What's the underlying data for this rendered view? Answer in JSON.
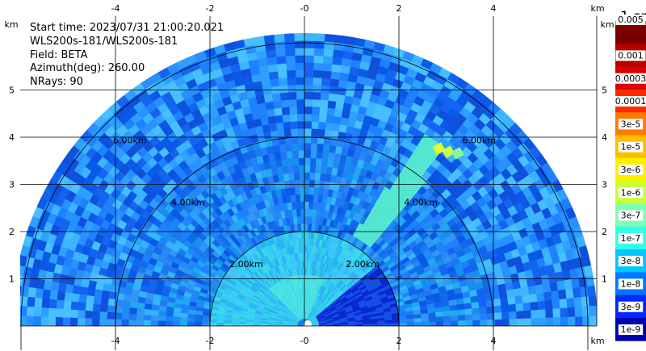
{
  "info": {
    "start_time": "Start time: 2023/07/31 21:00:20.021",
    "instrument": "WLS200s-181/WLS200s-181",
    "field": "Field: BETA",
    "azimuth": "Azimuth(deg): 260.00",
    "nrays": "NRays: 90"
  },
  "chart_data": {
    "type": "heatmap",
    "projection": "polar-sector",
    "x_axis": {
      "unit_label": "km",
      "ticks": [
        -4,
        -2,
        0,
        2,
        4
      ],
      "tick_labels": [
        "-4",
        "-2",
        "-0",
        "2",
        "4"
      ],
      "xlim": [
        -6.2,
        6.2
      ]
    },
    "y_axis": {
      "unit_label": "km",
      "ticks": [
        1,
        2,
        3,
        4,
        5
      ],
      "tick_labels": [
        "1",
        "2",
        "3",
        "4",
        "5"
      ],
      "ylim": [
        0,
        6.0
      ]
    },
    "range_rings_km": [
      2,
      4,
      6
    ],
    "range_ring_labels": [
      "2.00km",
      "4.00km",
      "6.00km"
    ],
    "grid": true,
    "colorbar": {
      "title": "-1 sr",
      "tick_labels": [
        "0.005",
        "0.001",
        "0.0003",
        "0.0001",
        "3e-5",
        "1e-5",
        "3e-6",
        "1e-6",
        "3e-7",
        "1e-7",
        "3e-8",
        "1e-8",
        "3e-9",
        "1e-9"
      ],
      "colors": [
        "#7a0000",
        "#b40000",
        "#dc0000",
        "#ff2a00",
        "#ff7a00",
        "#ffbe00",
        "#fff000",
        "#c8ff37",
        "#7dffb4",
        "#32ffe8",
        "#00c8ff",
        "#0078ff",
        "#0028ff",
        "#0000b4"
      ]
    },
    "field_description_levels": {
      "near_field_max": "1e-6",
      "background": "3e-8",
      "far_field_min": "1e-8",
      "hotspot": "3e-6"
    },
    "hotspots_km": [
      {
        "x": 2.85,
        "y": 3.75
      },
      {
        "x": 3.05,
        "y": 3.68
      },
      {
        "x": 3.25,
        "y": 3.65
      }
    ]
  }
}
